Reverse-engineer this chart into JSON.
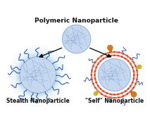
{
  "title": "Polymeric Nanoparticle",
  "label_stealth": "Stealth Nanoparticle",
  "label_self": "\"Self\" Nanoparticle",
  "bg_color": "#ffffff",
  "particle_fill": "#c5d8f0",
  "particle_fill_light": "#d8e8f8",
  "particle_edge": "#90aed8",
  "particle_inner_lines": "#7090c0",
  "stealth_glow1": "#b0d5f0",
  "stealth_glow2": "#90c5e8",
  "stealth_chains_color": "#2a50a0",
  "self_ring_color": "#e03010",
  "self_dot_color": "#e03010",
  "self_protein_orange": "#d07010",
  "self_protein_yellow": "#c8b020",
  "self_protein_gray": "#909090",
  "self_chains_color": "#2a50a0",
  "arrow_color": "#111111",
  "text_color": "#111111",
  "title_fontsize": 6.5,
  "label_fontsize": 5.5
}
